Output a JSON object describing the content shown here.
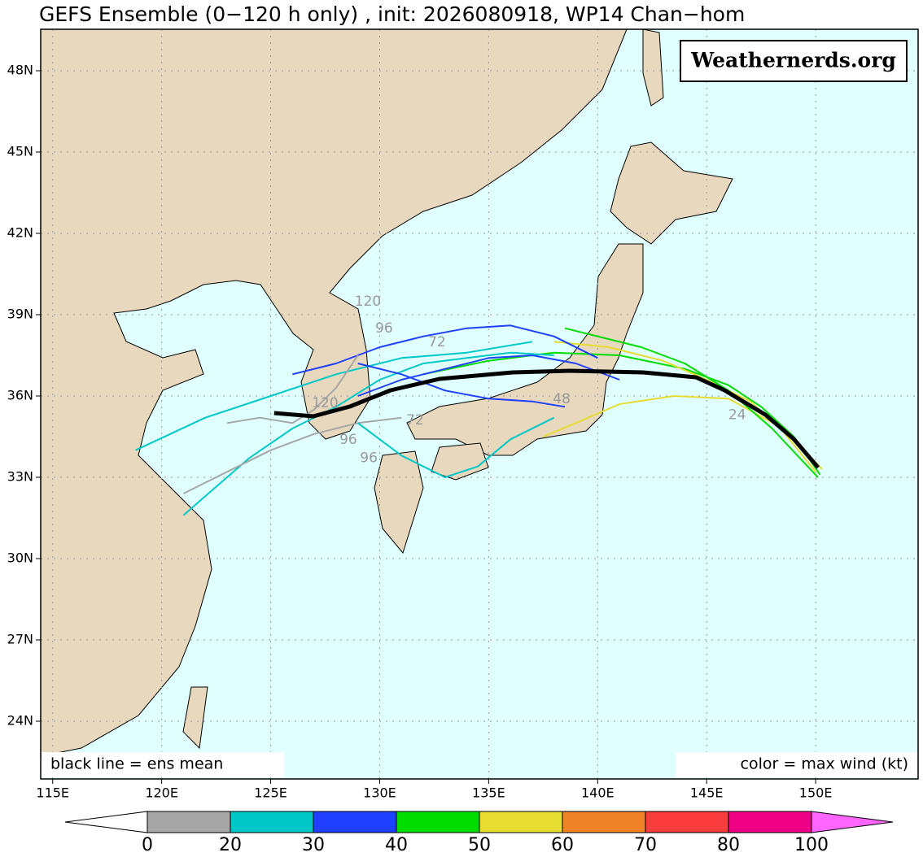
{
  "chart_data": {
    "type": "track",
    "title": "GEFS Ensemble (0−120 h only) , init: 2026080918, WP14 Chan−hom",
    "watermark": "Weathernerds.org",
    "note_left": "black line = ens mean",
    "note_right": "color = max wind (kt)",
    "xlim": [
      114.45,
      154.7
    ],
    "ylim": [
      21.87,
      49.53
    ],
    "xticks": [
      {
        "value": 115,
        "label": "115E"
      },
      {
        "value": 120,
        "label": "120E"
      },
      {
        "value": 125,
        "label": "125E"
      },
      {
        "value": 130,
        "label": "130E"
      },
      {
        "value": 135,
        "label": "135E"
      },
      {
        "value": 140,
        "label": "140E"
      },
      {
        "value": 145,
        "label": "145E"
      },
      {
        "value": 150,
        "label": "150E"
      }
    ],
    "yticks": [
      {
        "value": 24,
        "label": "24N"
      },
      {
        "value": 27,
        "label": "27N"
      },
      {
        "value": 30,
        "label": "30N"
      },
      {
        "value": 33,
        "label": "33N"
      },
      {
        "value": 36,
        "label": "36N"
      },
      {
        "value": 39,
        "label": "39N"
      },
      {
        "value": 42,
        "label": "42N"
      },
      {
        "value": 45,
        "label": "45N"
      },
      {
        "value": 48,
        "label": "48N"
      }
    ],
    "grid": true,
    "series": [
      {
        "color": "#000000",
        "x": [
          125.16,
          126.95,
          128.63,
          130.5,
          132.74,
          136.1,
          138.72,
          142.08,
          144.51,
          145.82,
          147.69,
          149.0,
          150.11
        ],
        "values": [
          35.37,
          35.25,
          35.61,
          36.21,
          36.63,
          36.87,
          36.93,
          36.87,
          36.69,
          36.21,
          35.31,
          34.41,
          33.36
        ]
      },
      {
        "color": "#00c8c8",
        "x": [
          118.8,
          122,
          125,
          128,
          131,
          134,
          137
        ],
        "values": [
          34.0,
          35.2,
          36.0,
          36.8,
          37.4,
          37.6,
          38.0
        ]
      },
      {
        "color": "#00dc00",
        "x": [
          150.2,
          149,
          147.5,
          146,
          144,
          141,
          138,
          135,
          132
        ],
        "values": [
          33.1,
          34.5,
          35.6,
          36.4,
          37.0,
          37.5,
          37.6,
          37.3,
          36.8
        ]
      },
      {
        "color": "#e6dc32",
        "x": [
          150,
          148.5,
          147,
          145,
          143,
          140.5,
          138
        ],
        "values": [
          33.2,
          34.7,
          35.8,
          36.6,
          37.3,
          37.8,
          38.0
        ]
      },
      {
        "color": "#e6dc32",
        "x": [
          150.3,
          148.5,
          146,
          143.5,
          141,
          139,
          137.5
        ],
        "values": [
          33.3,
          34.8,
          35.9,
          36.0,
          35.7,
          35.0,
          34.5
        ]
      },
      {
        "color": "#2040ff",
        "x": [
          141,
          139,
          137,
          135,
          133,
          131,
          129
        ],
        "values": [
          36.6,
          37.2,
          37.5,
          37.4,
          37.0,
          36.6,
          36.0
        ]
      },
      {
        "color": "#2040ff",
        "x": [
          140,
          138,
          136,
          134,
          132,
          130,
          128,
          126
        ],
        "values": [
          37.4,
          38.2,
          38.6,
          38.5,
          38.2,
          37.8,
          37.2,
          36.8
        ]
      },
      {
        "color": "#00c8c8",
        "x": [
          138,
          136,
          134,
          132,
          130,
          128,
          126,
          124,
          122,
          121
        ],
        "values": [
          37.5,
          37.6,
          37.4,
          37.2,
          36.6,
          35.6,
          34.8,
          33.7,
          32.3,
          31.6
        ]
      },
      {
        "color": "#a6a6a6",
        "x": [
          131,
          129,
          127,
          125,
          123,
          121
        ],
        "values": [
          35.2,
          35.0,
          34.6,
          34.0,
          33.2,
          32.4
        ]
      },
      {
        "color": "#00c8c8",
        "x": [
          138,
          136,
          134.5,
          133,
          131,
          129
        ],
        "values": [
          35.2,
          34.4,
          33.4,
          33.0,
          33.8,
          35.0
        ]
      },
      {
        "color": "#a6a6a6",
        "x": [
          129,
          128,
          127,
          126,
          124.5,
          123
        ],
        "values": [
          37.5,
          36.3,
          35.5,
          35.0,
          35.2,
          35.0
        ]
      },
      {
        "color": "#00dc00",
        "x": [
          150.1,
          148,
          146,
          144,
          142,
          140,
          138.5
        ],
        "values": [
          33.0,
          34.8,
          36.2,
          37.2,
          37.8,
          38.2,
          38.5
        ]
      },
      {
        "color": "#2040ff",
        "x": [
          138.5,
          137,
          135,
          133,
          131,
          129
        ],
        "values": [
          35.6,
          35.8,
          35.9,
          36.2,
          36.8,
          37.2
        ]
      }
    ],
    "annotations": [
      {
        "text": "120",
        "x": 129.46,
        "y": 39.48
      },
      {
        "text": "96",
        "x": 130.2,
        "y": 38.49
      },
      {
        "text": "72",
        "x": 132.63,
        "y": 37.98
      },
      {
        "text": "48",
        "x": 138.35,
        "y": 35.88
      },
      {
        "text": "120",
        "x": 127.5,
        "y": 35.73
      },
      {
        "text": "96",
        "x": 128.56,
        "y": 34.38
      },
      {
        "text": "72",
        "x": 131.62,
        "y": 35.1
      },
      {
        "text": "96",
        "x": 129.5,
        "y": 33.7
      },
      {
        "text": "24",
        "x": 146.4,
        "y": 35.3
      }
    ],
    "colorbar": {
      "ticks": [
        0,
        20,
        30,
        40,
        50,
        60,
        70,
        80,
        100
      ],
      "colors": [
        "#a6a6a6",
        "#00c8c8",
        "#2040ff",
        "#00dc00",
        "#e6dc32",
        "#f08228",
        "#fa3c3c",
        "#f00082"
      ],
      "under": "#ffffff",
      "over": "#ff66ff"
    }
  }
}
